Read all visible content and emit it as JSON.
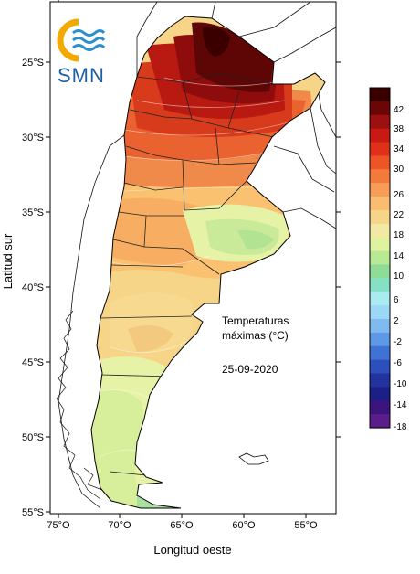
{
  "logo": {
    "text": "SMN"
  },
  "axes": {
    "x_label": "Longitud oeste",
    "y_label": "Latitud sur",
    "x_ticks": [
      "75°O",
      "70°O",
      "65°O",
      "60°O",
      "55°O"
    ],
    "y_ticks": [
      "25°S",
      "30°S",
      "35°S",
      "40°S",
      "45°S",
      "50°S",
      "55°S"
    ]
  },
  "annotation": {
    "line1": "Temperaturas",
    "line2": "máximas (°C)",
    "date": "25-09-2020"
  },
  "colorbar": {
    "labels": [
      "42",
      "38",
      "34",
      "30",
      "26",
      "22",
      "18",
      "14",
      "10",
      "6",
      "2",
      "-2",
      "-6",
      "-10",
      "-14",
      "-18"
    ],
    "colors": [
      "#3a0000",
      "#6b0606",
      "#9c1010",
      "#c81a12",
      "#e0301a",
      "#ee5526",
      "#f47a3c",
      "#f79d58",
      "#f9bc70",
      "#f6d488",
      "#f2e9a4",
      "#dff2a0",
      "#b8e994",
      "#8edc96",
      "#86e1c4",
      "#a8ecf2",
      "#9bd8f6",
      "#7fbaf0",
      "#5e98e6",
      "#3f72d4",
      "#2d4fbe",
      "#2233a0",
      "#1c1f86",
      "#3b157d",
      "#5a1d8a"
    ]
  },
  "colors": {
    "land_hot": "#5a0a0a",
    "land_warm": "#e0301a",
    "land_mild": "#f9bc70",
    "land_cool": "#b8e994",
    "border": "#000000",
    "frame": "#000000"
  }
}
